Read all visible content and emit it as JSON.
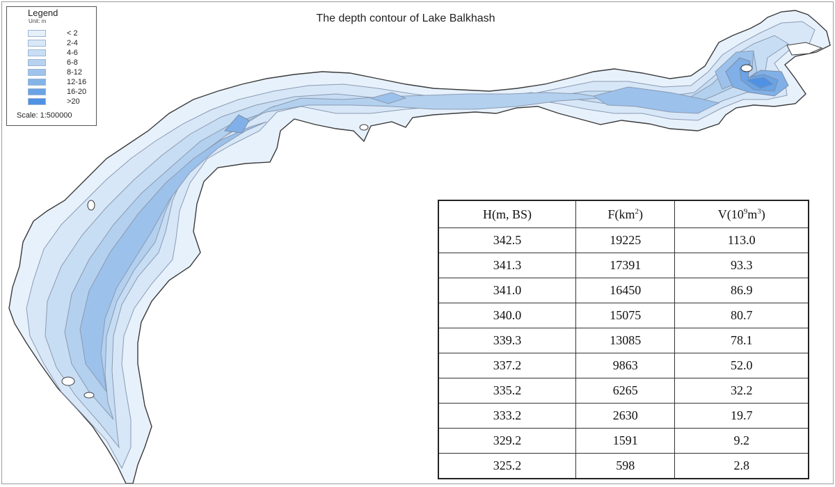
{
  "title": "The depth contour of Lake Balkhash",
  "legend": {
    "title": "Legend",
    "unit": "Unit: m",
    "items": [
      {
        "label": "< 2",
        "color": "#e6f0fb"
      },
      {
        "label": "2-4",
        "color": "#d9e8f8"
      },
      {
        "label": "4-6",
        "color": "#c9def4"
      },
      {
        "label": "6-8",
        "color": "#b6d2f0"
      },
      {
        "label": "8-12",
        "color": "#9fc3ec"
      },
      {
        "label": "12-16",
        "color": "#84b3e8"
      },
      {
        "label": "16-20",
        "color": "#6aa3e6"
      },
      {
        "label": ">20",
        "color": "#4f92e4"
      }
    ],
    "scale": "Scale: 1:500000"
  },
  "table": {
    "headers": {
      "h": {
        "main": "H(m, BS)"
      },
      "f": {
        "main": "F(km",
        "sup": "2",
        "tail": ")"
      },
      "v": {
        "main": "V(10",
        "sup1": "9",
        "mid": "m",
        "sup2": "3",
        "tail": ")"
      }
    },
    "rows": [
      [
        "342.5",
        "19225",
        "113.0"
      ],
      [
        "341.3",
        "17391",
        "93.3"
      ],
      [
        "341.0",
        "16450",
        "86.9"
      ],
      [
        "340.0",
        "15075",
        "80.7"
      ],
      [
        "339.3",
        "13085",
        "78.1"
      ],
      [
        "337.2",
        "9863",
        "52.0"
      ],
      [
        "335.2",
        "6265",
        "32.2"
      ],
      [
        "333.2",
        "2630",
        "19.7"
      ],
      [
        "329.2",
        "1591",
        "9.2"
      ],
      [
        "325.2",
        "598",
        "2.8"
      ]
    ]
  }
}
